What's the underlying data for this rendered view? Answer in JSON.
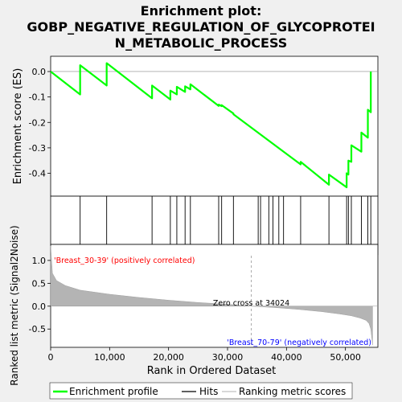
{
  "chart_data": {
    "type": "line",
    "title": "Enrichment plot:\nGOBP_NEGATIVE_REGULATION_OF_GLYCOPROTEI\nN_METABOLIC_PROCESS",
    "title_lines": [
      "Enrichment plot:",
      "GOBP_NEGATIVE_REGULATION_OF_GLYCOPROTEI",
      "N_METABOLIC_PROCESS"
    ],
    "xlabel": "Rank in Ordered Dataset",
    "ylabel_top": "Enrichment score (ES)",
    "ylabel_bottom": "Ranked list metric (Signal2Noise)",
    "xlim": [
      0,
      55500
    ],
    "es_ylim": [
      -0.49,
      0.06
    ],
    "metric_ylim": [
      -0.9,
      1.35
    ],
    "x_ticks": [
      0,
      10000,
      20000,
      30000,
      40000,
      50000
    ],
    "x_tick_labels": [
      "0",
      "10,000",
      "20,000",
      "30,000",
      "40,000",
      "50,000"
    ],
    "es_ticks": [
      0.0,
      -0.1,
      -0.2,
      -0.3,
      -0.4
    ],
    "es_tick_labels": [
      "0.0",
      "-0.1",
      "-0.2",
      "-0.3",
      "-0.4"
    ],
    "metric_ticks": [
      1.0,
      0.5,
      0.0,
      -0.5
    ],
    "metric_tick_labels": [
      "1.0",
      "0.5",
      "0.0",
      "-0.5"
    ],
    "hits": [
      5000,
      9500,
      17200,
      20300,
      21400,
      22800,
      23700,
      28500,
      29000,
      31000,
      35200,
      35600,
      37000,
      37700,
      38700,
      39500,
      42400,
      47200,
      50200,
      50500,
      51000,
      52700,
      53800,
      54300
    ],
    "es_series": {
      "name": "Enrichment profile",
      "x": [
        0,
        5000,
        5000,
        9500,
        9500,
        17200,
        17200,
        20300,
        20300,
        21400,
        21400,
        22800,
        22800,
        23700,
        23700,
        28500,
        28500,
        29000,
        29000,
        31000,
        31000,
        42400,
        42400,
        47200,
        47200,
        50200,
        50200,
        50500,
        50500,
        51000,
        51000,
        52700,
        52700,
        53800,
        53800,
        54300,
        54300
      ],
      "y": [
        0.0,
        -0.09,
        0.025,
        -0.055,
        0.033,
        -0.105,
        -0.055,
        -0.11,
        -0.075,
        -0.09,
        -0.06,
        -0.08,
        -0.058,
        -0.07,
        -0.05,
        -0.135,
        -0.13,
        -0.136,
        -0.132,
        -0.165,
        -0.168,
        -0.365,
        -0.355,
        -0.445,
        -0.405,
        -0.455,
        -0.4,
        -0.405,
        -0.35,
        -0.355,
        -0.29,
        -0.315,
        -0.24,
        -0.26,
        -0.15,
        -0.16,
        0.0
      ]
    },
    "metric_series": {
      "name": "Ranking metric scores",
      "x": [
        0,
        300,
        1000,
        2500,
        5000,
        10000,
        15000,
        20000,
        25000,
        30000,
        34024,
        38000,
        42000,
        46000,
        49000,
        51000,
        52500,
        53500,
        54000,
        54300,
        54600
      ],
      "y": [
        1.32,
        0.72,
        0.56,
        0.45,
        0.35,
        0.26,
        0.19,
        0.13,
        0.08,
        0.04,
        0.0,
        -0.03,
        -0.07,
        -0.12,
        -0.17,
        -0.21,
        -0.26,
        -0.31,
        -0.38,
        -0.5,
        -0.85
      ]
    },
    "zero_cross_label": "Zero cross at 34024",
    "zero_cross_x": 34024,
    "pos_label": "'Breast_30-39' (positively correlated)",
    "neg_label": "'Breast_70-79' (negatively correlated)",
    "legend": {
      "placement": "bottom",
      "items": [
        {
          "label": "Enrichment profile",
          "color": "#00ff00"
        },
        {
          "label": "Hits",
          "color": "#000000"
        },
        {
          "label": "Ranking metric scores",
          "color": "#c0c0c0"
        }
      ]
    },
    "colors": {
      "es_line": "#00ff00",
      "hit_line": "#000000",
      "metric_fill": "#b4b4b4",
      "pos_label": "#ff0000",
      "neg_label": "#0000ff",
      "background": "#f0f0f0",
      "plot_bg": "#ffffff"
    }
  }
}
